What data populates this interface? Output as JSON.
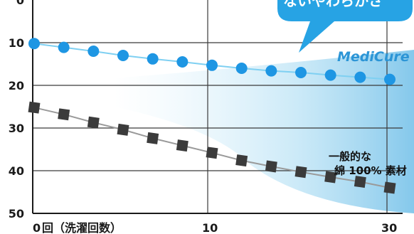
{
  "chart_data": {
    "type": "line",
    "x_ticks": [
      "0",
      "10",
      "30"
    ],
    "x_tick_values": [
      0,
      10,
      30
    ],
    "x_unit_label": "回（洗濯回数）",
    "y_ticks": [
      "0",
      "10",
      "20",
      "30",
      "40",
      "50"
    ],
    "y_tick_values": [
      0,
      10,
      20,
      30,
      40,
      50
    ],
    "ylim": [
      0,
      50
    ],
    "y_inverted": true,
    "grid": true,
    "series": [
      {
        "name": "MediCure",
        "color": "#1e96e3",
        "line_color": "#7fd0f2",
        "marker": "circle",
        "x": [
          0,
          1.5,
          3.5,
          5.8,
          8,
          10,
          12,
          14,
          16,
          18,
          20,
          22,
          24
        ],
        "y": [
          10.2,
          11.1,
          12.0,
          13.0,
          13.8,
          14.5,
          15.3,
          16.0,
          16.6,
          17.0,
          17.6,
          18.1,
          18.6
        ]
      },
      {
        "name": "一般的な綿 100% 素材",
        "color": "#3b3b3b",
        "line_color": "#9a9a9a",
        "marker": "square",
        "x": [
          0,
          1.5,
          3.5,
          5.8,
          8,
          10,
          12,
          14,
          16,
          18,
          20,
          22,
          24
        ],
        "y": [
          25.2,
          26.8,
          28.7,
          30.4,
          32.4,
          34.1,
          35.8,
          37.6,
          39.0,
          40.3,
          41.5,
          42.6,
          44.0
        ]
      }
    ],
    "callout_text": "ないやわらかさ",
    "series_labels": {
      "medicure": "MediCure",
      "cotton_line1": "一般的な",
      "cotton_line2": "綿 100% 素材"
    }
  }
}
